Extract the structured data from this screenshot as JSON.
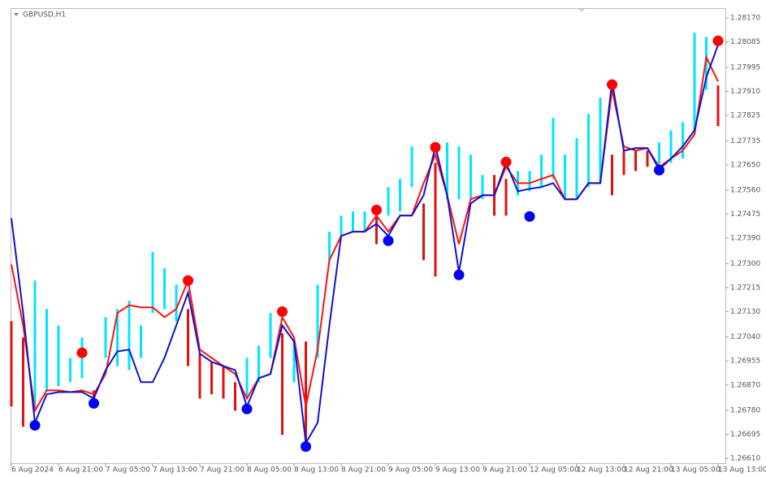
{
  "chart_data": {
    "type": "line",
    "title": "GBPUSD,H1",
    "categories": [
      "6 Aug 2024",
      null,
      null,
      null,
      "6 Aug 21:00",
      null,
      null,
      null,
      "7 Aug 05:00",
      null,
      null,
      null,
      "7 Aug 13:00",
      null,
      null,
      null,
      "7 Aug 21:00",
      null,
      null,
      null,
      "8 Aug 05:00",
      null,
      null,
      null,
      "8 Aug 13:00",
      null,
      null,
      null,
      "8 Aug 21:00",
      null,
      null,
      null,
      "9 Aug 05:00",
      null,
      null,
      null,
      "9 Aug 13:00",
      null,
      null,
      null,
      "9 Aug 21:00",
      null,
      null,
      null,
      "12 Aug 05:00",
      null,
      null,
      null,
      "12 Aug 13:00",
      null,
      null,
      null,
      "12 Aug 21:00",
      null,
      null,
      null,
      "13 Aug 05:00",
      null,
      null,
      null,
      "13 Aug 13:00"
    ],
    "ylim": [
      1.26593,
      1.28205
    ],
    "yticks": [
      {
        "value": 1.2817,
        "label": "1.28170"
      },
      1.28085,
      1.27995,
      {
        "value": 1.2791,
        "label": "1.27910"
      },
      1.27825,
      1.27735,
      {
        "value": 1.2765,
        "label": "1.27650"
      },
      {
        "value": 1.2756,
        "label": "1.27560"
      },
      1.27475,
      {
        "value": 1.2739,
        "label": "1.27390"
      },
      {
        "value": 1.273,
        "label": "1.27300"
      },
      1.27215,
      {
        "value": 1.2713,
        "label": "1.27130"
      },
      {
        "value": 1.2704,
        "label": "1.27040"
      },
      1.26955,
      {
        "value": 1.2687,
        "label": "1.26870"
      },
      {
        "value": 1.2678,
        "label": "1.26780"
      },
      1.26695,
      {
        "value": 1.2661,
        "label": "1.26610"
      }
    ],
    "bars": {
      "high": [
        1.27096,
        1.27038,
        1.2724,
        1.27139,
        1.27081,
        1.26966,
        1.27038,
        1.26851,
        1.2711,
        1.27139,
        1.27168,
        1.27081,
        1.27341,
        1.27283,
        1.27225,
        1.27139,
        1.26981,
        1.26952,
        1.26937,
        1.2688,
        1.26966,
        1.27009,
        1.27125,
        1.27053,
        1.27024,
        1.27024,
        1.27225,
        1.27413,
        1.2747,
        1.27485,
        1.27485,
        1.27485,
        1.27571,
        1.276,
        1.27715,
        1.27513,
        1.27657,
        1.27729,
        1.27715,
        1.27686,
        1.27614,
        1.27614,
        1.276,
        1.27628,
        1.27628,
        1.27686,
        1.27816,
        1.27686,
        1.27744,
        1.2783,
        1.27888,
        1.27686,
        1.277,
        1.277,
        1.277,
        1.27729,
        1.27772,
        1.27801,
        1.28118,
        1.28103,
        1.27931
      ],
      "low": [
        1.26794,
        1.26722,
        1.26779,
        1.26851,
        1.26866,
        1.2688,
        1.26894,
        1.26794,
        1.26966,
        1.26937,
        1.26923,
        1.26966,
        1.27125,
        1.27139,
        1.27096,
        1.26937,
        1.26822,
        1.26837,
        1.26822,
        1.26779,
        1.26822,
        1.2688,
        1.26966,
        1.26693,
        1.2688,
        1.2665,
        1.26966,
        1.27312,
        1.27398,
        1.27413,
        1.27413,
        1.27369,
        1.2747,
        1.27485,
        1.27571,
        1.27312,
        1.27254,
        1.27528,
        1.27528,
        1.27528,
        1.27528,
        1.2747,
        1.2747,
        1.27542,
        1.27556,
        1.27571,
        1.276,
        1.27528,
        1.27528,
        1.27571,
        1.27585,
        1.27542,
        1.27614,
        1.27628,
        1.27643,
        1.27628,
        1.27657,
        1.27672,
        1.27772,
        1.27916,
        1.27787
      ],
      "colors": [
        "#e01010",
        "#e01010",
        "#00e5ff",
        "#00e5ff",
        "#00e5ff",
        "#00e5ff",
        "#00e5ff",
        "#e01010",
        "#00e5ff",
        "#00e5ff",
        "#00e5ff",
        "#00e5ff",
        "#00e5ff",
        "#00e5ff",
        "#00e5ff",
        "#e01010",
        "#e01010",
        "#e01010",
        "#e01010",
        "#e01010",
        "#00e5ff",
        "#00e5ff",
        "#00e5ff",
        "#e01010",
        "#00e5ff",
        "#e01010",
        "#00e5ff",
        "#00e5ff",
        "#00e5ff",
        "#00e5ff",
        "#00e5ff",
        "#e01010",
        "#00e5ff",
        "#00e5ff",
        "#00e5ff",
        "#e01010",
        "#e01010",
        "#00e5ff",
        "#00e5ff",
        "#00e5ff",
        "#00e5ff",
        "#e01010",
        "#e01010",
        "#00e5ff",
        "#00e5ff",
        "#00e5ff",
        "#00e5ff",
        "#00e5ff",
        "#00e5ff",
        "#00e5ff",
        "#00e5ff",
        "#e01010",
        "#e01010",
        "#e01010",
        "#e01010",
        "#00e5ff",
        "#00e5ff",
        "#00e5ff",
        "#00e5ff",
        "#00e5ff",
        "#e01010"
      ]
    },
    "series": [
      {
        "color": "#ff1010",
        "values": [
          1.27297,
          1.27081,
          1.26779,
          1.26851,
          1.26851,
          1.26845,
          1.26851,
          1.26837,
          1.26909,
          1.27125,
          1.27153,
          1.27145,
          1.27145,
          1.2711,
          1.27139,
          1.2724,
          1.26995,
          1.26966,
          1.26937,
          1.26909,
          1.26822,
          1.26894,
          1.26909,
          1.2711,
          1.27038,
          1.26794,
          1.26995,
          1.27312,
          1.27398,
          1.27413,
          1.27413,
          1.2747,
          1.27413,
          1.2747,
          1.2747,
          1.27585,
          1.27686,
          1.27542,
          1.27369,
          1.27528,
          1.27542,
          1.27542,
          1.27643,
          1.27585,
          1.27585,
          1.276,
          1.27614,
          1.27528,
          1.27528,
          1.27585,
          1.27585,
          1.27916,
          1.27715,
          1.277,
          1.27709,
          1.27643,
          1.27672,
          1.277,
          1.27758,
          1.28031,
          1.27945
        ]
      },
      {
        "color": "#1010d0",
        "values": [
          1.27461,
          1.27125,
          1.26736,
          1.26837,
          1.26845,
          1.26845,
          1.26845,
          1.26822,
          1.26923,
          1.26989,
          1.26995,
          1.2688,
          1.2688,
          1.26966,
          1.27081,
          1.27197,
          1.26981,
          1.26952,
          1.26937,
          1.26923,
          1.26794,
          1.26894,
          1.26909,
          1.27081,
          1.27024,
          1.26664,
          1.26736,
          1.27081,
          1.27398,
          1.27413,
          1.27413,
          1.27441,
          1.27398,
          1.2747,
          1.2747,
          1.27542,
          1.27715,
          1.27542,
          1.27269,
          1.27513,
          1.27542,
          1.27542,
          1.27657,
          1.27556,
          1.27565,
          1.27571,
          1.27585,
          1.27528,
          1.27528,
          1.27585,
          1.27585,
          1.27945,
          1.277,
          1.27709,
          1.27709,
          1.27634,
          1.27672,
          1.27715,
          1.27772,
          1.2796,
          1.28075
        ]
      }
    ],
    "markers": [
      {
        "color": "#ff0000",
        "x": [
          6,
          15,
          23,
          31,
          36,
          42,
          51,
          60
        ],
        "values": [
          1.26984,
          1.2724,
          1.2713,
          1.2749,
          1.27712,
          1.2766,
          1.27934,
          1.28089
        ]
      },
      {
        "color": "#0000ff",
        "x": [
          2,
          7,
          20,
          25,
          32,
          38,
          44,
          55
        ],
        "values": [
          1.26727,
          1.26805,
          1.26785,
          1.26652,
          1.27381,
          1.2726,
          1.27467,
          1.27631
        ]
      }
    ]
  }
}
